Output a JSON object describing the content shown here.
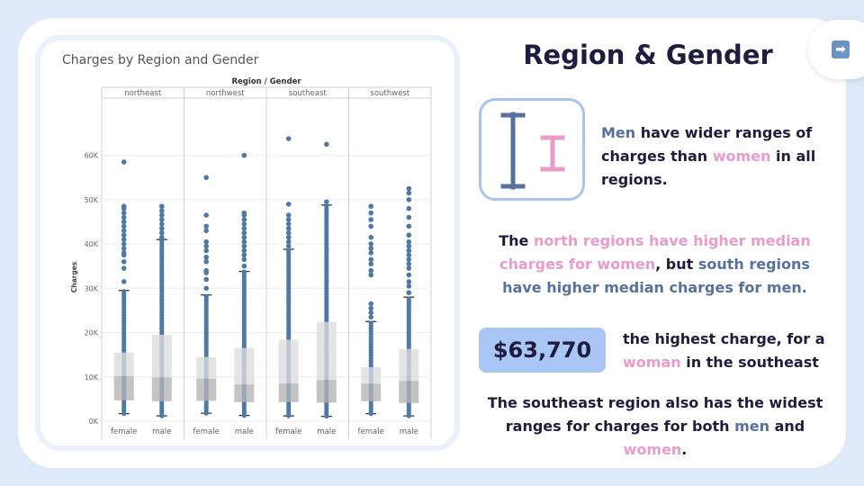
{
  "slide": {
    "title": "Region & Gender",
    "nav_icon": "right-arrow-emoji",
    "icon": {
      "name": "two-cursor-bars",
      "big_color": "#56719f",
      "small_color": "#e99ccb",
      "border": "#a9c4ec"
    },
    "p1": {
      "a": "Men",
      "b": " have wider ranges of charges than ",
      "c": "women",
      "d": " in all regions."
    },
    "p2": {
      "a": "The ",
      "b": "north regions have higher median charges for women",
      "c": ", but ",
      "d": "south regions have higher median charges for men."
    },
    "stat_value": "$63,770",
    "p3": {
      "a": "the highest charge, for a ",
      "b": "woman",
      "c": " in the southeast"
    },
    "p4": {
      "a": "The southeast region also has the widest ranges for charges for both ",
      "b": "men",
      "c": " and ",
      "d": "women",
      "e": "."
    }
  },
  "colors": {
    "dot": "#4e79a7",
    "box_light": "#dcdcdc",
    "box_dark": "#b4b4b4",
    "text_dark": "#1e1d3f",
    "blue_accent": "#56719f",
    "pink_accent": "#e99ccb"
  },
  "chart_data": {
    "type": "box",
    "title": "Charges by Region and Gender",
    "header": "Region / Gender",
    "ylabel": "Charges",
    "ylim": [
      0,
      65000
    ],
    "yticks": [
      0,
      10000,
      20000,
      30000,
      40000,
      50000,
      60000
    ],
    "ytick_labels": [
      "0K",
      "10K",
      "20K",
      "30K",
      "40K",
      "50K",
      "60K"
    ],
    "regions": [
      "northeast",
      "northwest",
      "southeast",
      "southwest"
    ],
    "genders": [
      "female",
      "male"
    ],
    "groups": [
      {
        "region": "northeast",
        "gender": "female",
        "min": 1700,
        "q1": 4700,
        "median": 10200,
        "q3": 15500,
        "whisker_high": 29500,
        "outliers": [
          31500,
          34500,
          36000,
          37500,
          38000,
          39000,
          40000,
          41000,
          42000,
          43000,
          44000,
          45000,
          46000,
          47000,
          48000,
          48500,
          58500
        ]
      },
      {
        "region": "northeast",
        "gender": "male",
        "min": 1200,
        "q1": 4500,
        "median": 9900,
        "q3": 19500,
        "whisker_high": 41000,
        "outliers": [
          41500,
          42500,
          43500,
          44500,
          45500,
          46500,
          47500,
          48500
        ]
      },
      {
        "region": "northwest",
        "gender": "female",
        "min": 1800,
        "q1": 4600,
        "median": 9600,
        "q3": 14500,
        "whisker_high": 28500,
        "outliers": [
          30000,
          32000,
          33500,
          34000,
          36000,
          37000,
          38500,
          39500,
          40500,
          43000,
          44000,
          46500,
          55000
        ]
      },
      {
        "region": "northwest",
        "gender": "male",
        "min": 1300,
        "q1": 4300,
        "median": 8300,
        "q3": 16500,
        "whisker_high": 33800,
        "outliers": [
          35000,
          36500,
          37500,
          38500,
          39500,
          40500,
          41500,
          42500,
          43500,
          44500,
          45500,
          46500,
          47000,
          60000
        ]
      },
      {
        "region": "southeast",
        "gender": "female",
        "min": 1200,
        "q1": 4300,
        "median": 8500,
        "q3": 18400,
        "whisker_high": 38800,
        "outliers": [
          39500,
          40500,
          41500,
          42500,
          43500,
          44500,
          45500,
          46500,
          49000,
          63770
        ]
      },
      {
        "region": "southeast",
        "gender": "male",
        "min": 1100,
        "q1": 4200,
        "median": 9300,
        "q3": 22400,
        "whisker_high": 48800,
        "outliers": [
          49500,
          62500
        ]
      },
      {
        "region": "southwest",
        "gender": "female",
        "min": 1700,
        "q1": 4500,
        "median": 8500,
        "q3": 12200,
        "whisker_high": 22500,
        "outliers": [
          23500,
          24500,
          25500,
          26500,
          33000,
          34000,
          35500,
          36500,
          38000,
          39000,
          40000,
          41500,
          44000,
          45500,
          47000,
          48500
        ]
      },
      {
        "region": "southwest",
        "gender": "male",
        "min": 1200,
        "q1": 4100,
        "median": 9100,
        "q3": 16300,
        "whisker_high": 28000,
        "outliers": [
          29000,
          30500,
          31500,
          33000,
          34500,
          35500,
          36500,
          37500,
          38500,
          39500,
          40500,
          42000,
          44000,
          46000,
          48000,
          50000,
          51500,
          52500
        ]
      }
    ]
  }
}
